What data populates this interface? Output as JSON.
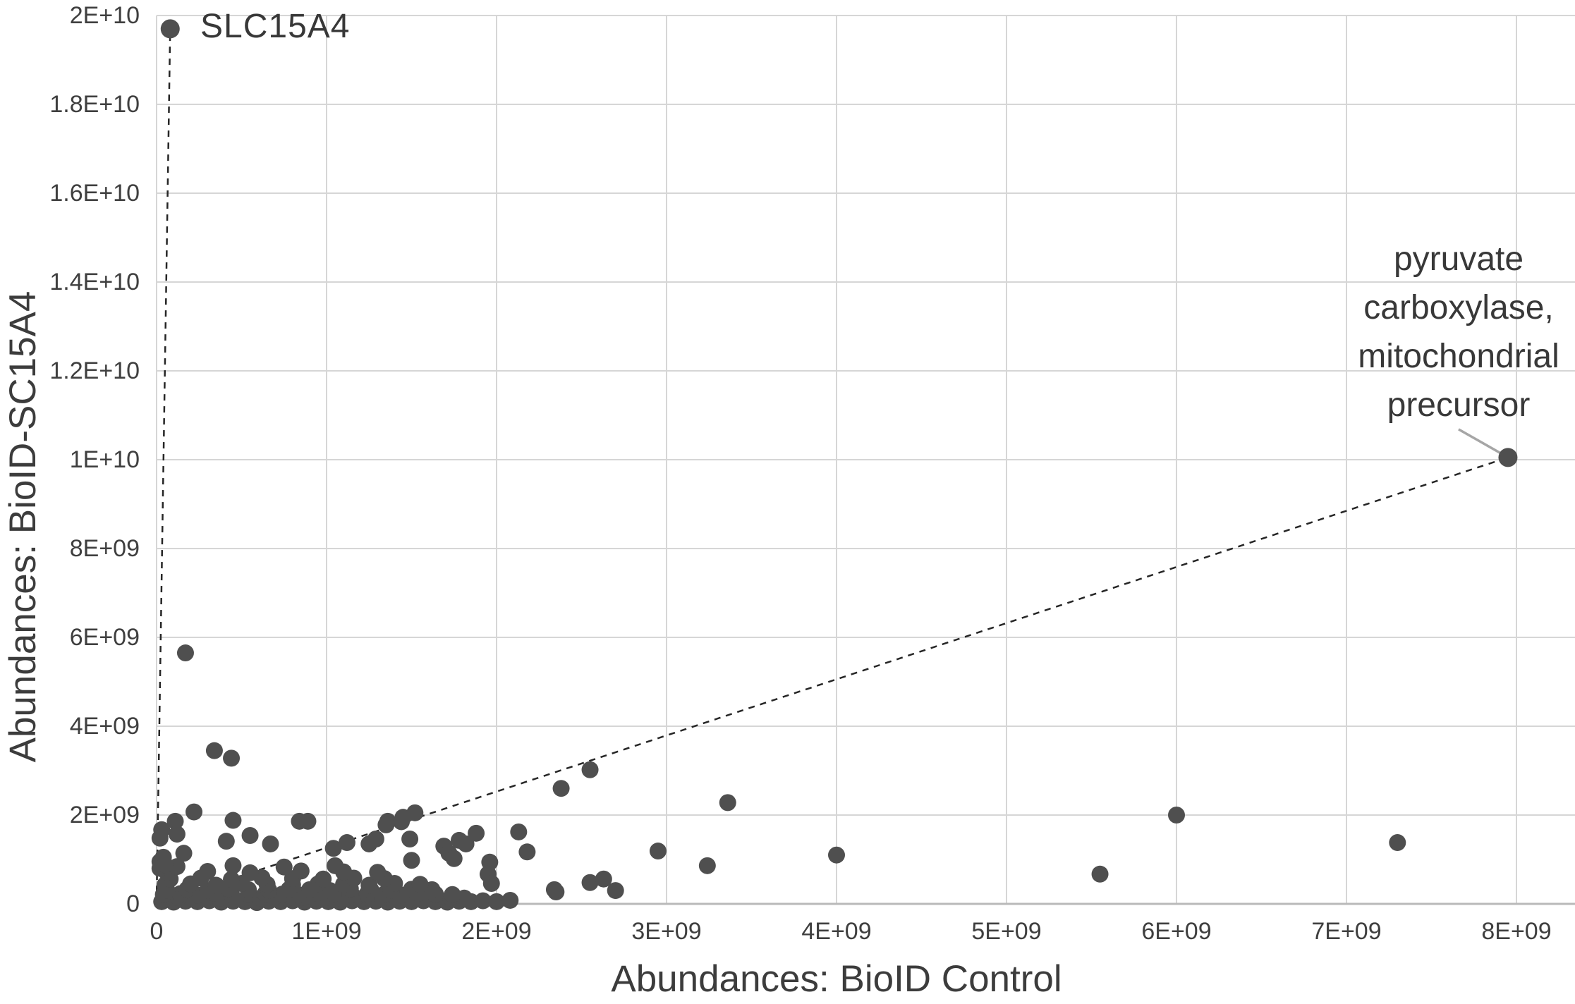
{
  "chart_data": {
    "type": "scatter",
    "title": "",
    "xlabel": "Abundances: BioID Control",
    "ylabel": "Abundances: BioID-SC15A4",
    "units": "axis values in units of 1E9",
    "xlim": [
      0,
      8.34
    ],
    "ylim": [
      0,
      20.0
    ],
    "grid": true,
    "legend": "none",
    "x_ticks": {
      "values": [
        0,
        1,
        2,
        3,
        4,
        5,
        6,
        7,
        8
      ],
      "labels": [
        "0",
        "1E+09",
        "2E+09",
        "3E+09",
        "4E+09",
        "5E+09",
        "6E+09",
        "7E+09",
        "8E+09"
      ]
    },
    "y_ticks": {
      "values": [
        0,
        2,
        4,
        6,
        8,
        10,
        12,
        14,
        16,
        18,
        20
      ],
      "labels": [
        "0",
        "2E+09",
        "4E+09",
        "6E+09",
        "8E+09",
        "1E+10",
        "1.2E+10",
        "1.4E+10",
        "1.6E+10",
        "1.8E+10",
        "2E+10"
      ]
    },
    "colors": {
      "point": "#4f4f4f",
      "gridline": "#d6d6d6",
      "axis_line": "#b9b9b9",
      "dashed_line": "#262626",
      "leader_line": "#a6a6a6",
      "text": "#3f3f3f"
    },
    "labeled_points": [
      {
        "label": "SLC15A4",
        "x": 0.08,
        "y": 19.7
      },
      {
        "label": "pyruvate carboxylase, mitochondrial precursor",
        "x": 7.95,
        "y": 10.05
      }
    ],
    "annotations": {
      "slc15a4": {
        "text": "SLC15A4"
      },
      "pyruvate": {
        "lines": [
          "pyruvate",
          "carboxylase,",
          "mitochondrial",
          "precursor"
        ]
      }
    },
    "reference_lines": [
      {
        "from": [
          0,
          0
        ],
        "to": [
          0.08,
          19.7
        ],
        "style": "dashed"
      },
      {
        "from": [
          0,
          0
        ],
        "to": [
          7.95,
          10.05
        ],
        "style": "dashed"
      }
    ],
    "points": [
      [
        0.22,
        2.07
      ],
      [
        0.11,
        1.86
      ],
      [
        0.03,
        1.67
      ],
      [
        0.12,
        1.57
      ],
      [
        0.02,
        1.48
      ],
      [
        0.45,
        1.88
      ],
      [
        0.41,
        1.41
      ],
      [
        0.55,
        1.54
      ],
      [
        0.67,
        1.35
      ],
      [
        0.16,
        1.14
      ],
      [
        0.84,
        1.86
      ],
      [
        0.89,
        1.86
      ],
      [
        1.36,
        1.86
      ],
      [
        1.45,
        1.95
      ],
      [
        1.52,
        2.05
      ],
      [
        1.04,
        1.25
      ],
      [
        1.12,
        1.38
      ],
      [
        1.25,
        1.35
      ],
      [
        1.29,
        1.46
      ],
      [
        1.44,
        1.85
      ],
      [
        1.69,
        1.3
      ],
      [
        1.78,
        1.43
      ],
      [
        1.82,
        1.35
      ],
      [
        1.88,
        1.59
      ],
      [
        1.49,
        1.46
      ],
      [
        1.5,
        0.98
      ],
      [
        1.96,
        0.94
      ],
      [
        1.72,
        1.14
      ],
      [
        1.35,
        1.78
      ],
      [
        2.35,
        0.27
      ],
      [
        2.55,
        0.48
      ],
      [
        2.63,
        0.56
      ],
      [
        1.95,
        0.67
      ],
      [
        1.97,
        0.46
      ],
      [
        2.34,
        0.32
      ],
      [
        2.7,
        0.3
      ],
      [
        2.13,
        1.62
      ],
      [
        2.18,
        1.17
      ],
      [
        1.75,
        1.02
      ],
      [
        2.95,
        1.19
      ],
      [
        3.24,
        0.86
      ],
      [
        2.55,
        3.02
      ],
      [
        2.38,
        2.6
      ],
      [
        3.36,
        2.28
      ],
      [
        0.34,
        3.45
      ],
      [
        0.44,
        3.28
      ],
      [
        0.17,
        5.65
      ],
      [
        4.0,
        1.1
      ],
      [
        5.55,
        0.67
      ],
      [
        6.0,
        2.0
      ],
      [
        7.3,
        1.38
      ],
      [
        0.03,
        0.05
      ],
      [
        0.1,
        0.04
      ],
      [
        0.17,
        0.06
      ],
      [
        0.24,
        0.05
      ],
      [
        0.31,
        0.07
      ],
      [
        0.38,
        0.04
      ],
      [
        0.45,
        0.06
      ],
      [
        0.52,
        0.05
      ],
      [
        0.59,
        0.03
      ],
      [
        0.66,
        0.06
      ],
      [
        0.73,
        0.05
      ],
      [
        0.8,
        0.07
      ],
      [
        0.87,
        0.04
      ],
      [
        0.94,
        0.06
      ],
      [
        1.01,
        0.05
      ],
      [
        1.08,
        0.04
      ],
      [
        1.15,
        0.07
      ],
      [
        1.22,
        0.05
      ],
      [
        1.29,
        0.06
      ],
      [
        1.36,
        0.04
      ],
      [
        1.43,
        0.06
      ],
      [
        1.5,
        0.05
      ],
      [
        1.57,
        0.07
      ],
      [
        1.64,
        0.05
      ],
      [
        1.71,
        0.04
      ],
      [
        1.78,
        0.06
      ],
      [
        1.85,
        0.05
      ],
      [
        1.92,
        0.07
      ],
      [
        2.0,
        0.05
      ],
      [
        2.08,
        0.08
      ],
      [
        0.05,
        0.12
      ],
      [
        0.13,
        0.14
      ],
      [
        0.21,
        0.12
      ],
      [
        0.29,
        0.15
      ],
      [
        0.37,
        0.13
      ],
      [
        0.45,
        0.12
      ],
      [
        0.53,
        0.14
      ],
      [
        0.61,
        0.13
      ],
      [
        0.69,
        0.15
      ],
      [
        0.77,
        0.12
      ],
      [
        0.85,
        0.14
      ],
      [
        0.93,
        0.13
      ],
      [
        1.01,
        0.15
      ],
      [
        1.09,
        0.12
      ],
      [
        1.17,
        0.14
      ],
      [
        1.25,
        0.13
      ],
      [
        1.33,
        0.12
      ],
      [
        1.41,
        0.15
      ],
      [
        1.49,
        0.13
      ],
      [
        1.57,
        0.14
      ],
      [
        1.65,
        0.12
      ],
      [
        1.73,
        0.14
      ],
      [
        1.81,
        0.13
      ],
      [
        0.04,
        0.21
      ],
      [
        0.14,
        0.23
      ],
      [
        0.24,
        0.2
      ],
      [
        0.34,
        0.24
      ],
      [
        0.44,
        0.22
      ],
      [
        0.54,
        0.21
      ],
      [
        0.64,
        0.23
      ],
      [
        0.74,
        0.22
      ],
      [
        0.84,
        0.2
      ],
      [
        0.94,
        0.24
      ],
      [
        1.04,
        0.22
      ],
      [
        1.14,
        0.21
      ],
      [
        1.24,
        0.23
      ],
      [
        1.34,
        0.22
      ],
      [
        1.44,
        0.2
      ],
      [
        1.54,
        0.24
      ],
      [
        1.64,
        0.22
      ],
      [
        1.74,
        0.21
      ],
      [
        0.06,
        0.31
      ],
      [
        0.18,
        0.33
      ],
      [
        0.3,
        0.3
      ],
      [
        0.42,
        0.34
      ],
      [
        0.54,
        0.32
      ],
      [
        0.66,
        0.31
      ],
      [
        0.78,
        0.33
      ],
      [
        0.9,
        0.32
      ],
      [
        1.02,
        0.3
      ],
      [
        1.14,
        0.34
      ],
      [
        1.26,
        0.32
      ],
      [
        1.38,
        0.31
      ],
      [
        1.5,
        0.33
      ],
      [
        1.62,
        0.32
      ],
      [
        0.05,
        0.43
      ],
      [
        0.2,
        0.45
      ],
      [
        0.35,
        0.42
      ],
      [
        0.5,
        0.46
      ],
      [
        0.65,
        0.44
      ],
      [
        0.8,
        0.43
      ],
      [
        0.95,
        0.45
      ],
      [
        1.1,
        0.44
      ],
      [
        1.25,
        0.42
      ],
      [
        1.4,
        0.46
      ],
      [
        1.55,
        0.44
      ],
      [
        0.08,
        0.56
      ],
      [
        0.26,
        0.58
      ],
      [
        0.44,
        0.55
      ],
      [
        0.62,
        0.59
      ],
      [
        0.8,
        0.57
      ],
      [
        0.98,
        0.56
      ],
      [
        1.16,
        0.58
      ],
      [
        1.34,
        0.57
      ],
      [
        0.06,
        0.71
      ],
      [
        0.3,
        0.73
      ],
      [
        0.55,
        0.7
      ],
      [
        0.85,
        0.74
      ],
      [
        1.1,
        0.72
      ],
      [
        1.3,
        0.71
      ],
      [
        0.12,
        0.84
      ],
      [
        0.45,
        0.86
      ],
      [
        0.75,
        0.83
      ],
      [
        1.05,
        0.86
      ],
      [
        0.02,
        0.95
      ],
      [
        0.04,
        1.05
      ],
      [
        0.02,
        0.8
      ],
      [
        0.05,
        0.88
      ]
    ]
  }
}
